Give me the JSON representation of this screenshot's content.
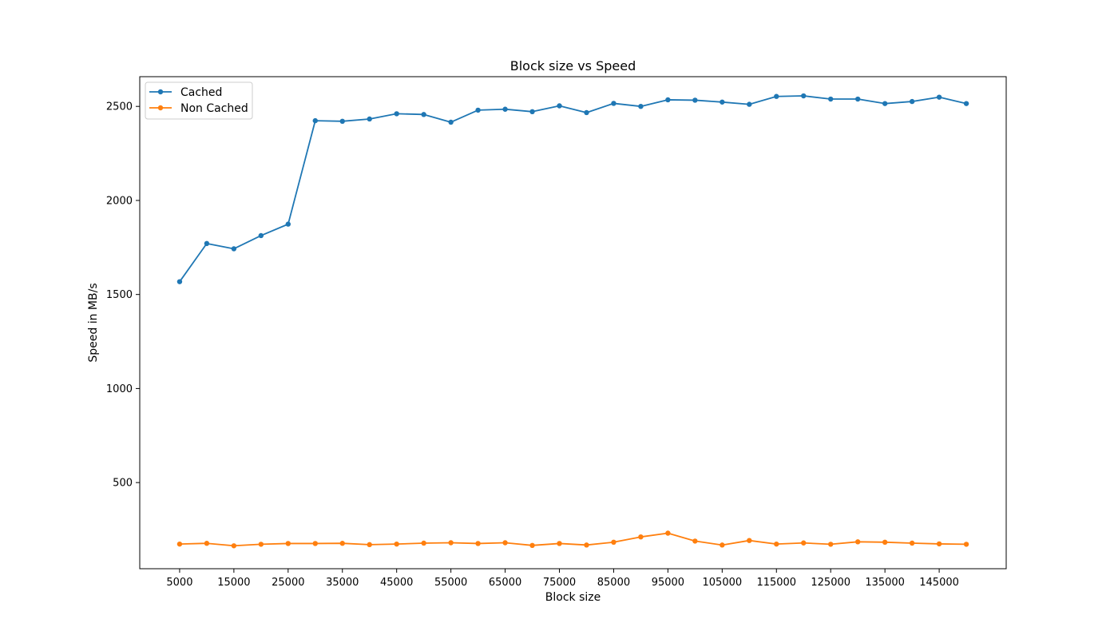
{
  "chart_data": {
    "type": "line",
    "title": "Block size vs Speed",
    "xlabel": "Block size",
    "ylabel": "Speed in MB/s",
    "x": [
      5000,
      10000,
      15000,
      20000,
      25000,
      30000,
      35000,
      40000,
      45000,
      50000,
      55000,
      60000,
      65000,
      70000,
      75000,
      80000,
      85000,
      90000,
      95000,
      100000,
      105000,
      110000,
      115000,
      120000,
      125000,
      130000,
      135000,
      140000,
      145000,
      150000
    ],
    "xticks": [
      5000,
      15000,
      25000,
      35000,
      45000,
      55000,
      65000,
      75000,
      85000,
      95000,
      105000,
      115000,
      125000,
      135000,
      145000
    ],
    "yticks": [
      500,
      1000,
      1500,
      2000,
      2500
    ],
    "xlim": [
      -2350,
      157350
    ],
    "ylim": [
      42,
      2658
    ],
    "grid": false,
    "legend_position": "top-left",
    "series": [
      {
        "name": "Cached",
        "color": "#1f77b4",
        "values": [
          1568,
          1771,
          1743,
          1813,
          1874,
          2424,
          2421,
          2433,
          2461,
          2457,
          2416,
          2480,
          2485,
          2472,
          2503,
          2467,
          2516,
          2500,
          2535,
          2533,
          2523,
          2511,
          2553,
          2556,
          2539,
          2539,
          2515,
          2526,
          2549,
          2515
        ]
      },
      {
        "name": "Non Cached",
        "color": "#ff7f0e",
        "values": [
          173,
          177,
          164,
          172,
          176,
          176,
          177,
          170,
          173,
          178,
          180,
          176,
          180,
          166,
          176,
          168,
          183,
          211,
          231,
          189,
          168,
          192,
          173,
          179,
          172,
          185,
          183,
          178,
          174,
          172
        ]
      }
    ]
  }
}
